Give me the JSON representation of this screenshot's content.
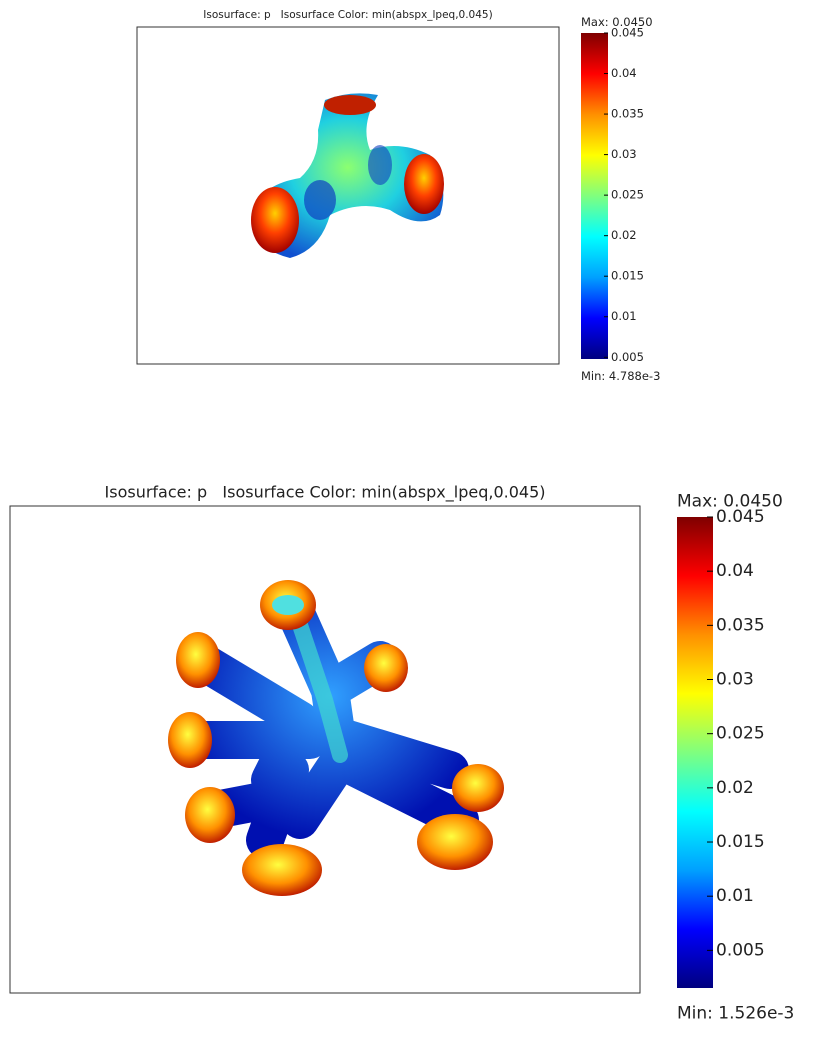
{
  "chart_data": [
    {
      "type": "isosurface",
      "title": "Isosurface: p   Isosurface Color: min(abspx_lpeq,0.045)",
      "max_label": "Max: 0.0450",
      "min_label": "Min: 4.788e-3",
      "clim": [
        0.004788,
        0.045
      ],
      "cticks": [
        0.005,
        0.01,
        0.015,
        0.02,
        0.025,
        0.03,
        0.035,
        0.04,
        0.045
      ],
      "colormap": [
        "#00007f",
        "#0000ff",
        "#00a0ff",
        "#00ffff",
        "#7fff7f",
        "#ffff00",
        "#ff9000",
        "#ff0000",
        "#7f0000"
      ]
    },
    {
      "type": "isosurface",
      "title": "Isosurface: p   Isosurface Color: min(abspx_lpeq,0.045)",
      "max_label": "Max: 0.0450",
      "min_label": "Min: 1.526e-3",
      "clim": [
        0.001526,
        0.045
      ],
      "cticks": [
        0.005,
        0.01,
        0.015,
        0.02,
        0.025,
        0.03,
        0.035,
        0.04,
        0.045
      ],
      "colormap": [
        "#00007f",
        "#0000ff",
        "#00a0ff",
        "#00ffff",
        "#7fff7f",
        "#ffff00",
        "#ff9000",
        "#ff0000",
        "#7f0000"
      ]
    }
  ]
}
